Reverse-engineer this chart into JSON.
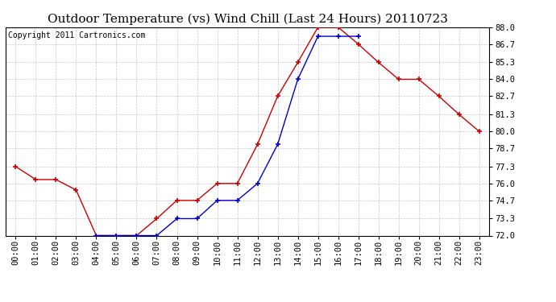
{
  "title": "Outdoor Temperature (vs) Wind Chill (Last 24 Hours) 20110723",
  "copyright": "Copyright 2011 Cartronics.com",
  "x_labels": [
    "00:00",
    "01:00",
    "02:00",
    "03:00",
    "04:00",
    "05:00",
    "06:00",
    "07:00",
    "08:00",
    "09:00",
    "10:00",
    "11:00",
    "12:00",
    "13:00",
    "14:00",
    "15:00",
    "16:00",
    "17:00",
    "18:00",
    "19:00",
    "20:00",
    "21:00",
    "22:00",
    "23:00"
  ],
  "temp_data": [
    77.3,
    76.3,
    76.3,
    75.5,
    72.0,
    72.0,
    72.0,
    73.3,
    74.7,
    74.7,
    76.0,
    76.0,
    79.0,
    82.7,
    85.3,
    88.0,
    88.0,
    86.7,
    85.3,
    84.0,
    84.0,
    82.7,
    81.3,
    80.0
  ],
  "windchill_data": [
    null,
    null,
    null,
    null,
    72.0,
    72.0,
    72.0,
    72.0,
    73.3,
    73.3,
    74.7,
    74.7,
    76.0,
    79.0,
    84.0,
    87.3,
    87.3,
    87.3,
    null,
    null,
    null,
    null,
    null,
    null
  ],
  "temp_color": "#cc0000",
  "windchill_color": "#0000cc",
  "bg_color": "#ffffff",
  "grid_color": "#bbbbbb",
  "ylim": [
    72.0,
    88.0
  ],
  "yticks": [
    72.0,
    73.3,
    74.7,
    76.0,
    77.3,
    78.7,
    80.0,
    81.3,
    82.7,
    84.0,
    85.3,
    86.7,
    88.0
  ],
  "title_fontsize": 11,
  "copyright_fontsize": 7,
  "tick_fontsize": 7.5
}
